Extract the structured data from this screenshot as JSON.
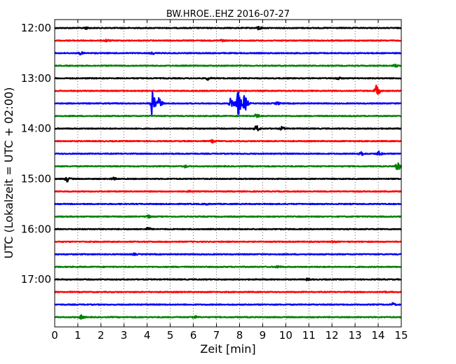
{
  "chart_data": {
    "type": "line",
    "title": "BW.HROE..EHZ 2016-07-27",
    "xlabel": "Zeit  [min]",
    "ylabel": "UTC (Lokalzeit = UTC + 02:00)",
    "xlim": [
      0,
      15
    ],
    "x_ticks": [
      0,
      1,
      2,
      3,
      4,
      5,
      6,
      7,
      8,
      9,
      10,
      11,
      12,
      13,
      14,
      15
    ],
    "x_grid": "dotted vertical lines at each minute",
    "y_ticks": [
      "12:00",
      "13:00",
      "14:00",
      "15:00",
      "16:00",
      "17:00"
    ],
    "trace_interval_min": 15,
    "color_cycle": [
      "#000000",
      "#ff0000",
      "#0000ff",
      "#008000"
    ],
    "series": [
      {
        "start": "12:00",
        "color": "#000000",
        "events": [
          {
            "t": 1.3,
            "amp": 0.18
          },
          {
            "t": 8.8,
            "amp": 0.3
          }
        ]
      },
      {
        "start": "12:15",
        "color": "#ff0000",
        "events": [
          {
            "t": 2.2,
            "amp": 0.2
          },
          {
            "t": 7.2,
            "amp": 0.15
          }
        ]
      },
      {
        "start": "12:30",
        "color": "#0000ff",
        "events": [
          {
            "t": 1.1,
            "amp": 0.2
          },
          {
            "t": 4.2,
            "amp": 0.15
          }
        ]
      },
      {
        "start": "12:45",
        "color": "#008000",
        "events": [
          {
            "t": 14.7,
            "amp": 0.2
          }
        ]
      },
      {
        "start": "13:00",
        "color": "#000000",
        "events": [
          {
            "t": 6.6,
            "amp": 0.25
          },
          {
            "t": 12.2,
            "amp": 0.25
          }
        ]
      },
      {
        "start": "13:15",
        "color": "#ff0000",
        "events": [
          {
            "t": 13.9,
            "amp": 0.9
          }
        ]
      },
      {
        "start": "13:30",
        "color": "#0000ff",
        "events": [
          {
            "t": 4.2,
            "amp": 1.9
          },
          {
            "t": 4.5,
            "amp": 0.8
          },
          {
            "t": 7.6,
            "amp": 0.9
          },
          {
            "t": 7.9,
            "amp": 2.2
          },
          {
            "t": 8.2,
            "amp": 1.3
          },
          {
            "t": 9.6,
            "amp": 0.2
          }
        ]
      },
      {
        "start": "13:45",
        "color": "#008000",
        "events": [
          {
            "t": 8.7,
            "amp": 0.3
          }
        ]
      },
      {
        "start": "14:00",
        "color": "#000000",
        "events": [
          {
            "t": 8.7,
            "amp": 0.5
          },
          {
            "t": 9.8,
            "amp": 0.25
          }
        ]
      },
      {
        "start": "14:15",
        "color": "#ff0000",
        "events": [
          {
            "t": 6.8,
            "amp": 0.2
          }
        ]
      },
      {
        "start": "14:30",
        "color": "#0000ff",
        "events": [
          {
            "t": 13.2,
            "amp": 0.4
          },
          {
            "t": 14.0,
            "amp": 0.35
          }
        ]
      },
      {
        "start": "14:45",
        "color": "#008000",
        "events": [
          {
            "t": 5.6,
            "amp": 0.2
          },
          {
            "t": 14.8,
            "amp": 0.8
          }
        ]
      },
      {
        "start": "15:00",
        "color": "#000000",
        "events": [
          {
            "t": 0.5,
            "amp": 0.45
          },
          {
            "t": 2.5,
            "amp": 0.2
          }
        ]
      },
      {
        "start": "15:15",
        "color": "#ff0000",
        "events": [
          {
            "t": 5.8,
            "amp": 0.12
          }
        ]
      },
      {
        "start": "15:30",
        "color": "#0000ff",
        "events": [
          {
            "t": 6.5,
            "amp": 0.1
          }
        ]
      },
      {
        "start": "15:45",
        "color": "#008000",
        "events": [
          {
            "t": 4.0,
            "amp": 0.25
          }
        ]
      },
      {
        "start": "16:00",
        "color": "#000000",
        "events": [
          {
            "t": 4.0,
            "amp": 0.25
          }
        ]
      },
      {
        "start": "16:15",
        "color": "#ff0000",
        "events": [
          {
            "t": 12.0,
            "amp": 0.12
          }
        ]
      },
      {
        "start": "16:30",
        "color": "#0000ff",
        "events": [
          {
            "t": 3.4,
            "amp": 0.12
          }
        ]
      },
      {
        "start": "16:45",
        "color": "#008000",
        "events": [
          {
            "t": 9.6,
            "amp": 0.2
          }
        ]
      },
      {
        "start": "17:00",
        "color": "#000000",
        "events": [
          {
            "t": 10.9,
            "amp": 0.12
          }
        ]
      },
      {
        "start": "17:15",
        "color": "#ff0000",
        "events": [
          {
            "t": 14.2,
            "amp": 0.1
          }
        ]
      },
      {
        "start": "17:30",
        "color": "#0000ff",
        "events": [
          {
            "t": 14.6,
            "amp": 0.25
          }
        ]
      },
      {
        "start": "17:45",
        "color": "#008000",
        "events": [
          {
            "t": 1.1,
            "amp": 0.3
          },
          {
            "t": 6.0,
            "amp": 0.25
          }
        ]
      }
    ]
  }
}
